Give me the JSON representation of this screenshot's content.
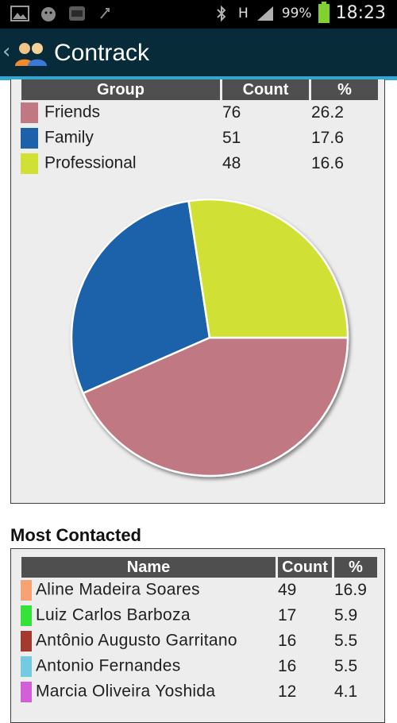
{
  "status_bar": {
    "battery": "99%",
    "time": "18:23",
    "network": "H",
    "icons": [
      "gallery-icon",
      "android-robot-icon",
      "calendar-icon",
      "usb-icon",
      "bluetooth-icon",
      "signal-icon",
      "battery-icon"
    ]
  },
  "header": {
    "back_icon": "chevron-left-icon",
    "logo_icon": "people-icon",
    "title": "Contrack"
  },
  "groups": {
    "columns": [
      "Group",
      "Count",
      "%"
    ],
    "rows": [
      {
        "name": "Friends",
        "count": "76",
        "pct": "26.2",
        "color": "#c07883"
      },
      {
        "name": "Family",
        "count": "51",
        "pct": "17.6",
        "color": "#1b62aa"
      },
      {
        "name": "Professional",
        "count": "48",
        "pct": "16.6",
        "color": "#d1e034"
      }
    ]
  },
  "chart_data": {
    "type": "pie",
    "labels": [
      "Friends",
      "Family",
      "Professional"
    ],
    "values": [
      76,
      51,
      48
    ],
    "colors": [
      "#c07883",
      "#1b62aa",
      "#d1e034"
    ]
  },
  "most_contacted": {
    "title": "Most Contacted",
    "columns": [
      "Name",
      "Count",
      "%"
    ],
    "rows": [
      {
        "name": "Aline Madeira Soares",
        "count": "49",
        "pct": "16.9",
        "color": "#f6a272"
      },
      {
        "name": "Luiz Carlos Barboza",
        "count": "17",
        "pct": "5.9",
        "color": "#35e23a"
      },
      {
        "name": "Antônio Augusto Garritano",
        "count": "16",
        "pct": "5.5",
        "color": "#a33a2e"
      },
      {
        "name": "Antonio Fernandes",
        "count": "16",
        "pct": "5.5",
        "color": "#74cbe0"
      },
      {
        "name": "Marcia Oliveira Yoshida",
        "count": "12",
        "pct": "4.1",
        "color": "#d35fd6"
      }
    ]
  }
}
